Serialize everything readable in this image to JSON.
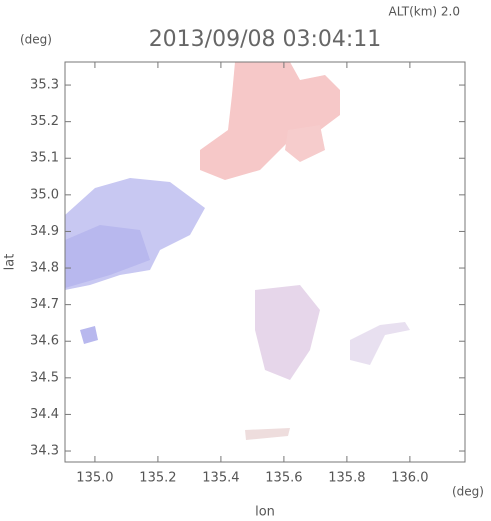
{
  "chart_data": {
    "type": "map",
    "title": "2013/09/08 03:04:11",
    "subtitle": "ALT(km) 2.0",
    "x_label": "lon",
    "y_label": "lat",
    "x_unit": "(deg)",
    "y_unit": "(deg)",
    "xlim": [
      134.905,
      136.175
    ],
    "ylim": [
      34.27,
      35.363
    ],
    "xticks": [
      {
        "value": 135.0,
        "label": "135.0"
      },
      135.2,
      135.4,
      135.6,
      135.8,
      {
        "value": 136.0,
        "label": "136.0"
      }
    ],
    "yticks": [
      34.3,
      34.4,
      34.5,
      34.6,
      34.7,
      34.8,
      34.9,
      {
        "value": 35.0,
        "label": "35.0"
      },
      35.1,
      35.2,
      35.3
    ]
  }
}
